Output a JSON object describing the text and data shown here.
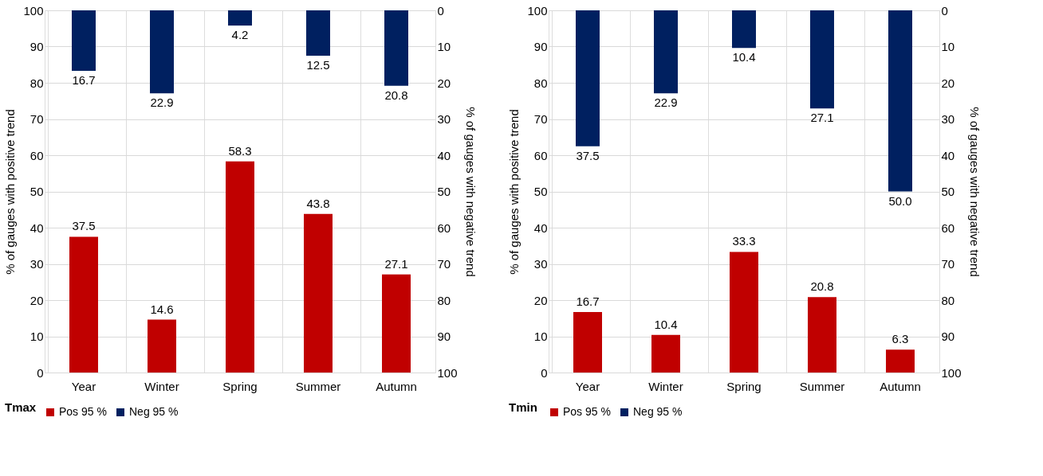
{
  "chart_data": [
    {
      "type": "bar",
      "title": "Tmax",
      "categories": [
        "Year",
        "Winter",
        "Spring",
        "Summer",
        "Autumn"
      ],
      "ylabel": "% of gauges with positive trend",
      "y2label": "% of gauges with negative trend",
      "ylim": [
        0,
        100
      ],
      "yticks": [
        0,
        10,
        20,
        30,
        40,
        50,
        60,
        70,
        80,
        90,
        100
      ],
      "y2lim": [
        100,
        0
      ],
      "y2ticks": [
        0,
        10,
        20,
        30,
        40,
        50,
        60,
        70,
        80,
        90,
        100
      ],
      "data_labels": true,
      "legend": "bottom",
      "grid": true,
      "series": [
        {
          "name": "Pos 95 %",
          "color": "#c00000",
          "values": [
            37.5,
            14.6,
            58.3,
            43.8,
            27.1
          ]
        },
        {
          "name": "Neg 95 %",
          "color": "#002060",
          "axis": "y2",
          "values": [
            16.7,
            22.9,
            4.2,
            12.5,
            20.8
          ]
        }
      ]
    },
    {
      "type": "bar",
      "title": "Tmin",
      "categories": [
        "Year",
        "Winter",
        "Spring",
        "Summer",
        "Autumn"
      ],
      "ylabel": "% of gauges with positive trend",
      "y2label": "% of gauges with negative trend",
      "ylim": [
        0,
        100
      ],
      "yticks": [
        0,
        10,
        20,
        30,
        40,
        50,
        60,
        70,
        80,
        90,
        100
      ],
      "y2lim": [
        100,
        0
      ],
      "y2ticks": [
        0,
        10,
        20,
        30,
        40,
        50,
        60,
        70,
        80,
        90,
        100
      ],
      "data_labels": true,
      "legend": "bottom",
      "grid": true,
      "series": [
        {
          "name": "Pos 95 %",
          "color": "#c00000",
          "values": [
            16.7,
            10.4,
            33.3,
            20.8,
            6.3
          ]
        },
        {
          "name": "Neg 95 %",
          "color": "#002060",
          "axis": "y2",
          "values": [
            37.5,
            22.9,
            10.4,
            27.1,
            50.0
          ],
          "value_labels": [
            "37.5",
            "22.9",
            "10.4",
            "27.1",
            "50.0"
          ]
        }
      ]
    }
  ]
}
